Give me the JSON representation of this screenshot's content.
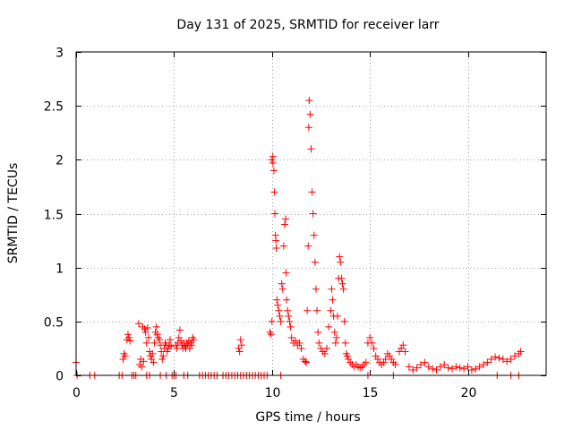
{
  "chart_data": {
    "type": "scatter",
    "title": "Day 131 of 2025, SRMTID for receiver larr",
    "xlabel": "GPS time / hours",
    "ylabel": "SRMTID / TECUs",
    "xlim": [
      0,
      24
    ],
    "ylim": [
      0,
      3
    ],
    "xticks": [
      0,
      5,
      10,
      15,
      20
    ],
    "xtick_labels": [
      "0",
      "5",
      "10",
      "15",
      "20"
    ],
    "yticks": [
      0,
      0.5,
      1,
      1.5,
      2,
      2.5,
      3
    ],
    "ytick_labels": [
      "0",
      "0.5",
      "1",
      "1.5",
      "2",
      "2.5",
      "3"
    ],
    "grid": true,
    "marker": "+",
    "color": "#ff0000",
    "series": [
      {
        "name": "SRMTID",
        "points": [
          [
            0.0,
            0.12
          ],
          [
            0.05,
            0.0
          ],
          [
            0.7,
            0.0
          ],
          [
            0.95,
            0.0
          ],
          [
            2.2,
            0.0
          ],
          [
            2.35,
            0.0
          ],
          [
            2.4,
            0.15
          ],
          [
            2.45,
            0.2
          ],
          [
            2.5,
            0.18
          ],
          [
            2.6,
            0.33
          ],
          [
            2.65,
            0.38
          ],
          [
            2.7,
            0.35
          ],
          [
            2.75,
            0.32
          ],
          [
            2.85,
            0.0
          ],
          [
            2.95,
            0.0
          ],
          [
            3.05,
            0.0
          ],
          [
            3.2,
            0.48
          ],
          [
            3.25,
            0.1
          ],
          [
            3.3,
            0.15
          ],
          [
            3.35,
            0.08
          ],
          [
            3.4,
            0.45
          ],
          [
            3.45,
            0.13
          ],
          [
            3.5,
            0.43
          ],
          [
            3.55,
            0.4
          ],
          [
            3.6,
            0.3
          ],
          [
            3.65,
            0.44
          ],
          [
            3.7,
            0.35
          ],
          [
            3.75,
            0.22
          ],
          [
            3.8,
            0.18
          ],
          [
            3.85,
            0.15
          ],
          [
            3.9,
            0.2
          ],
          [
            3.95,
            0.12
          ],
          [
            4.0,
            0.3
          ],
          [
            4.05,
            0.4
          ],
          [
            4.1,
            0.45
          ],
          [
            4.15,
            0.38
          ],
          [
            4.2,
            0.35
          ],
          [
            4.25,
            0.33
          ],
          [
            4.3,
            0.28
          ],
          [
            4.35,
            0.22
          ],
          [
            4.4,
            0.15
          ],
          [
            4.45,
            0.18
          ],
          [
            4.5,
            0.25
          ],
          [
            4.55,
            0.3
          ],
          [
            4.6,
            0.28
          ],
          [
            4.65,
            0.22
          ],
          [
            4.7,
            0.25
          ],
          [
            4.75,
            0.28
          ],
          [
            4.8,
            0.33
          ],
          [
            4.85,
            0.27
          ],
          [
            3.6,
            0.0
          ],
          [
            3.75,
            0.0
          ],
          [
            4.3,
            0.0
          ],
          [
            4.6,
            0.0
          ],
          [
            4.9,
            0.0
          ],
          [
            5.0,
            0.0
          ],
          [
            5.1,
            0.0
          ],
          [
            5.1,
            0.28
          ],
          [
            5.15,
            0.25
          ],
          [
            5.2,
            0.3
          ],
          [
            5.25,
            0.35
          ],
          [
            5.3,
            0.42
          ],
          [
            5.35,
            0.32
          ],
          [
            5.4,
            0.28
          ],
          [
            5.45,
            0.25
          ],
          [
            5.5,
            0.3
          ],
          [
            5.55,
            0.27
          ],
          [
            5.6,
            0.25
          ],
          [
            5.65,
            0.3
          ],
          [
            5.7,
            0.28
          ],
          [
            5.75,
            0.32
          ],
          [
            5.8,
            0.25
          ],
          [
            5.85,
            0.3
          ],
          [
            5.9,
            0.28
          ],
          [
            5.95,
            0.35
          ],
          [
            6.0,
            0.33
          ],
          [
            5.5,
            0.0
          ],
          [
            5.7,
            0.0
          ],
          [
            6.3,
            0.0
          ],
          [
            6.45,
            0.0
          ],
          [
            6.6,
            0.0
          ],
          [
            6.75,
            0.0
          ],
          [
            6.9,
            0.0
          ],
          [
            7.05,
            0.0
          ],
          [
            7.2,
            0.0
          ],
          [
            7.5,
            0.0
          ],
          [
            7.65,
            0.0
          ],
          [
            7.8,
            0.0
          ],
          [
            7.95,
            0.0
          ],
          [
            8.1,
            0.0
          ],
          [
            8.25,
            0.0
          ],
          [
            8.4,
            0.0
          ],
          [
            8.3,
            0.25
          ],
          [
            8.35,
            0.22
          ],
          [
            8.4,
            0.33
          ],
          [
            8.45,
            0.28
          ],
          [
            8.55,
            0.0
          ],
          [
            8.7,
            0.0
          ],
          [
            8.85,
            0.0
          ],
          [
            9.0,
            0.0
          ],
          [
            9.15,
            0.0
          ],
          [
            9.3,
            0.0
          ],
          [
            9.45,
            0.0
          ],
          [
            9.6,
            0.0
          ],
          [
            9.75,
            0.0
          ],
          [
            10.45,
            0.0
          ],
          [
            9.9,
            0.4
          ],
          [
            9.95,
            0.38
          ],
          [
            10.0,
            0.5
          ],
          [
            10.0,
            2.0
          ],
          [
            10.05,
            2.03
          ],
          [
            10.05,
            1.97
          ],
          [
            10.1,
            1.9
          ],
          [
            10.12,
            1.7
          ],
          [
            10.15,
            1.5
          ],
          [
            10.18,
            1.3
          ],
          [
            10.2,
            1.25
          ],
          [
            10.22,
            1.18
          ],
          [
            10.25,
            0.7
          ],
          [
            10.3,
            0.65
          ],
          [
            10.35,
            0.6
          ],
          [
            10.4,
            0.55
          ],
          [
            10.45,
            0.5
          ],
          [
            10.5,
            0.85
          ],
          [
            10.55,
            0.8
          ],
          [
            10.6,
            1.2
          ],
          [
            10.65,
            1.4
          ],
          [
            10.7,
            1.45
          ],
          [
            10.72,
            0.95
          ],
          [
            10.75,
            0.7
          ],
          [
            10.8,
            0.6
          ],
          [
            10.85,
            0.55
          ],
          [
            10.9,
            0.5
          ],
          [
            10.95,
            0.45
          ],
          [
            11.0,
            0.35
          ],
          [
            11.1,
            0.3
          ],
          [
            11.2,
            0.32
          ],
          [
            11.3,
            0.28
          ],
          [
            11.4,
            0.3
          ],
          [
            11.5,
            0.25
          ],
          [
            11.6,
            0.15
          ],
          [
            11.7,
            0.13
          ],
          [
            11.75,
            0.12
          ],
          [
            11.8,
            0.6
          ],
          [
            11.85,
            1.2
          ],
          [
            11.88,
            2.3
          ],
          [
            11.9,
            2.55
          ],
          [
            11.95,
            2.42
          ],
          [
            12.0,
            2.1
          ],
          [
            12.05,
            1.7
          ],
          [
            12.1,
            1.5
          ],
          [
            12.15,
            1.3
          ],
          [
            12.2,
            1.05
          ],
          [
            12.25,
            0.8
          ],
          [
            12.3,
            0.6
          ],
          [
            12.35,
            0.4
          ],
          [
            12.4,
            0.3
          ],
          [
            12.5,
            0.25
          ],
          [
            12.6,
            0.22
          ],
          [
            12.7,
            0.2
          ],
          [
            12.8,
            0.25
          ],
          [
            12.9,
            0.45
          ],
          [
            13.0,
            0.6
          ],
          [
            13.05,
            0.8
          ],
          [
            13.1,
            0.7
          ],
          [
            13.15,
            0.55
          ],
          [
            13.2,
            0.4
          ],
          [
            13.25,
            0.3
          ],
          [
            13.3,
            0.35
          ],
          [
            13.35,
            0.55
          ],
          [
            13.4,
            0.9
          ],
          [
            13.45,
            1.1
          ],
          [
            13.5,
            1.05
          ],
          [
            13.55,
            0.9
          ],
          [
            13.6,
            0.85
          ],
          [
            13.65,
            0.8
          ],
          [
            13.7,
            0.5
          ],
          [
            13.75,
            0.3
          ],
          [
            13.8,
            0.2
          ],
          [
            13.85,
            0.18
          ],
          [
            13.9,
            0.15
          ],
          [
            14.0,
            0.12
          ],
          [
            14.1,
            0.1
          ],
          [
            14.2,
            0.08
          ],
          [
            14.3,
            0.1
          ],
          [
            14.4,
            0.08
          ],
          [
            14.5,
            0.07
          ],
          [
            14.6,
            0.08
          ],
          [
            14.7,
            0.1
          ],
          [
            14.8,
            0.12
          ],
          [
            14.9,
            0.3
          ],
          [
            15.0,
            0.35
          ],
          [
            15.1,
            0.3
          ],
          [
            15.2,
            0.25
          ],
          [
            15.3,
            0.18
          ],
          [
            15.4,
            0.15
          ],
          [
            15.5,
            0.12
          ],
          [
            15.6,
            0.1
          ],
          [
            15.7,
            0.12
          ],
          [
            15.8,
            0.15
          ],
          [
            15.9,
            0.2
          ],
          [
            16.0,
            0.18
          ],
          [
            16.1,
            0.15
          ],
          [
            16.2,
            0.12
          ],
          [
            16.3,
            0.1
          ],
          [
            16.5,
            0.22
          ],
          [
            16.6,
            0.25
          ],
          [
            16.7,
            0.28
          ],
          [
            16.8,
            0.22
          ],
          [
            14.9,
            0.0
          ],
          [
            16.2,
            0.0
          ],
          [
            17.0,
            0.08
          ],
          [
            17.2,
            0.05
          ],
          [
            17.4,
            0.07
          ],
          [
            17.6,
            0.1
          ],
          [
            17.8,
            0.12
          ],
          [
            18.0,
            0.08
          ],
          [
            18.2,
            0.06
          ],
          [
            18.4,
            0.05
          ],
          [
            18.6,
            0.08
          ],
          [
            18.8,
            0.1
          ],
          [
            19.0,
            0.07
          ],
          [
            19.2,
            0.06
          ],
          [
            19.4,
            0.08
          ],
          [
            19.6,
            0.07
          ],
          [
            19.8,
            0.06
          ],
          [
            20.0,
            0.08
          ],
          [
            20.2,
            0.05
          ],
          [
            20.4,
            0.06
          ],
          [
            20.6,
            0.08
          ],
          [
            20.8,
            0.1
          ],
          [
            21.0,
            0.12
          ],
          [
            21.2,
            0.15
          ],
          [
            21.4,
            0.17
          ],
          [
            21.6,
            0.16
          ],
          [
            21.8,
            0.15
          ],
          [
            22.0,
            0.13
          ],
          [
            22.2,
            0.15
          ],
          [
            22.4,
            0.18
          ],
          [
            22.6,
            0.2
          ],
          [
            22.7,
            0.22
          ],
          [
            21.5,
            0.0
          ],
          [
            22.2,
            0.0
          ],
          [
            22.6,
            0.0
          ]
        ]
      }
    ]
  }
}
